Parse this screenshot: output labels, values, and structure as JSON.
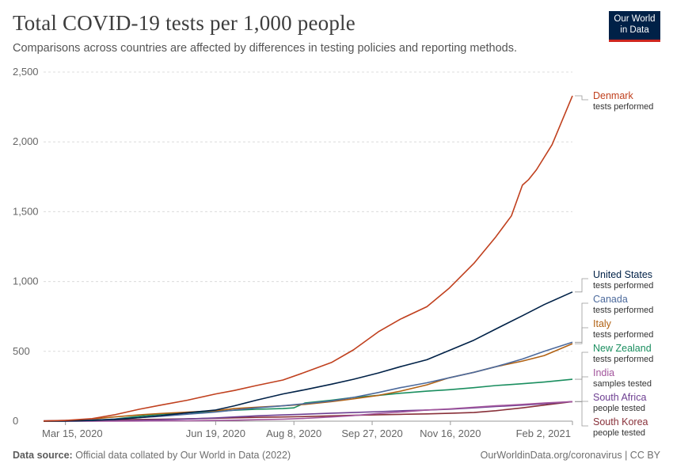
{
  "header": {
    "title": "Total COVID-19 tests per 1,000 people",
    "subtitle": "Comparisons across countries are affected by differences in testing policies and reporting methods.",
    "logo_line1": "Our World",
    "logo_line2": "in Data"
  },
  "footer": {
    "source_label": "Data source:",
    "source_text": "Official data collated by Our World in Data (2022)",
    "credit": "OurWorldinData.org/coronavirus | CC BY"
  },
  "chart_data": {
    "type": "line",
    "title": "Total COVID-19 tests per 1,000 people",
    "subtitle": "Comparisons across countries are affected by differences in testing policies and reporting methods.",
    "xlabel": "",
    "ylabel": "",
    "x_range": [
      "2020-03-01",
      "2021-02-02"
    ],
    "ylim": [
      0,
      2500
    ],
    "y_ticks": [
      0,
      500,
      1000,
      1500,
      2000,
      2500
    ],
    "y_tick_labels": [
      "0",
      "500",
      "1,000",
      "1,500",
      "2,000",
      "2,500"
    ],
    "x_ticks": [
      "2020-03-15",
      "2020-06-19",
      "2020-08-08",
      "2020-09-27",
      "2020-11-16",
      "2021-02-02"
    ],
    "x_tick_labels": [
      "Mar 15, 2020",
      "Jun 19, 2020",
      "Aug 8, 2020",
      "Sep 27, 2020",
      "Nov 16, 2020",
      "Feb 2, 2021"
    ],
    "grid": "horizontal dashed",
    "legend": "labels at right end of lines",
    "series": [
      {
        "name": "Denmark",
        "description": "tests performed",
        "color": "#c0401e",
        "points": [
          [
            "2020-03-01",
            1
          ],
          [
            "2020-03-15",
            5
          ],
          [
            "2020-04-01",
            18
          ],
          [
            "2020-04-15",
            45
          ],
          [
            "2020-05-01",
            85
          ],
          [
            "2020-05-15",
            115
          ],
          [
            "2020-06-01",
            150
          ],
          [
            "2020-06-19",
            195
          ],
          [
            "2020-07-01",
            220
          ],
          [
            "2020-07-15",
            255
          ],
          [
            "2020-08-01",
            295
          ],
          [
            "2020-08-15",
            350
          ],
          [
            "2020-09-01",
            420
          ],
          [
            "2020-09-15",
            510
          ],
          [
            "2020-10-01",
            640
          ],
          [
            "2020-10-15",
            730
          ],
          [
            "2020-11-01",
            820
          ],
          [
            "2020-11-15",
            950
          ],
          [
            "2020-12-01",
            1130
          ],
          [
            "2020-12-15",
            1320
          ],
          [
            "2020-12-25",
            1470
          ],
          [
            "2021-01-01",
            1690
          ],
          [
            "2021-01-05",
            1730
          ],
          [
            "2021-01-10",
            1800
          ],
          [
            "2021-01-20",
            1980
          ],
          [
            "2021-02-02",
            2330
          ]
        ]
      },
      {
        "name": "United States",
        "description": "tests performed",
        "color": "#002147",
        "points": [
          [
            "2020-03-01",
            0
          ],
          [
            "2020-03-15",
            1
          ],
          [
            "2020-04-01",
            5
          ],
          [
            "2020-04-15",
            12
          ],
          [
            "2020-05-01",
            25
          ],
          [
            "2020-05-15",
            40
          ],
          [
            "2020-06-01",
            60
          ],
          [
            "2020-06-19",
            80
          ],
          [
            "2020-07-01",
            110
          ],
          [
            "2020-07-15",
            150
          ],
          [
            "2020-08-01",
            195
          ],
          [
            "2020-08-15",
            225
          ],
          [
            "2020-09-01",
            265
          ],
          [
            "2020-09-15",
            300
          ],
          [
            "2020-10-01",
            345
          ],
          [
            "2020-10-15",
            390
          ],
          [
            "2020-11-01",
            440
          ],
          [
            "2020-11-15",
            505
          ],
          [
            "2020-12-01",
            580
          ],
          [
            "2020-12-15",
            660
          ],
          [
            "2021-01-01",
            755
          ],
          [
            "2021-01-15",
            835
          ],
          [
            "2021-02-02",
            925
          ]
        ]
      },
      {
        "name": "Canada",
        "description": "tests performed",
        "color": "#4c6a9c",
        "points": [
          [
            "2020-03-01",
            0
          ],
          [
            "2020-03-15",
            2
          ],
          [
            "2020-04-01",
            8
          ],
          [
            "2020-04-15",
            15
          ],
          [
            "2020-05-01",
            25
          ],
          [
            "2020-05-15",
            35
          ],
          [
            "2020-06-01",
            50
          ],
          [
            "2020-06-19",
            65
          ],
          [
            "2020-07-01",
            80
          ],
          [
            "2020-07-15",
            95
          ],
          [
            "2020-08-01",
            110
          ],
          [
            "2020-08-15",
            125
          ],
          [
            "2020-09-01",
            145
          ],
          [
            "2020-09-15",
            170
          ],
          [
            "2020-10-01",
            205
          ],
          [
            "2020-10-15",
            240
          ],
          [
            "2020-11-01",
            275
          ],
          [
            "2020-11-15",
            310
          ],
          [
            "2020-12-01",
            350
          ],
          [
            "2020-12-15",
            390
          ],
          [
            "2021-01-01",
            445
          ],
          [
            "2021-01-15",
            500
          ],
          [
            "2021-02-02",
            565
          ]
        ]
      },
      {
        "name": "Italy",
        "description": "tests performed",
        "color": "#b16214",
        "points": [
          [
            "2020-03-01",
            0
          ],
          [
            "2020-03-15",
            3
          ],
          [
            "2020-04-01",
            15
          ],
          [
            "2020-04-15",
            30
          ],
          [
            "2020-05-01",
            45
          ],
          [
            "2020-05-15",
            55
          ],
          [
            "2020-06-01",
            65
          ],
          [
            "2020-06-19",
            75
          ],
          [
            "2020-07-01",
            90
          ],
          [
            "2020-07-15",
            100
          ],
          [
            "2020-08-01",
            110
          ],
          [
            "2020-08-15",
            120
          ],
          [
            "2020-09-01",
            140
          ],
          [
            "2020-09-15",
            160
          ],
          [
            "2020-10-01",
            185
          ],
          [
            "2020-10-15",
            215
          ],
          [
            "2020-11-01",
            260
          ],
          [
            "2020-11-15",
            310
          ],
          [
            "2020-12-01",
            350
          ],
          [
            "2020-12-15",
            390
          ],
          [
            "2021-01-01",
            430
          ],
          [
            "2021-01-15",
            470
          ],
          [
            "2021-02-02",
            555
          ]
        ]
      },
      {
        "name": "New Zealand",
        "description": "tests performed",
        "color": "#1a8e5f",
        "points": [
          [
            "2020-03-01",
            0
          ],
          [
            "2020-03-15",
            1
          ],
          [
            "2020-04-01",
            5
          ],
          [
            "2020-04-15",
            15
          ],
          [
            "2020-05-01",
            35
          ],
          [
            "2020-05-15",
            50
          ],
          [
            "2020-06-01",
            60
          ],
          [
            "2020-06-19",
            70
          ],
          [
            "2020-07-01",
            78
          ],
          [
            "2020-07-15",
            85
          ],
          [
            "2020-08-01",
            90
          ],
          [
            "2020-08-08",
            95
          ],
          [
            "2020-08-15",
            130
          ],
          [
            "2020-09-01",
            150
          ],
          [
            "2020-09-15",
            170
          ],
          [
            "2020-10-01",
            185
          ],
          [
            "2020-10-15",
            200
          ],
          [
            "2020-11-01",
            215
          ],
          [
            "2020-11-15",
            225
          ],
          [
            "2020-12-01",
            240
          ],
          [
            "2020-12-15",
            255
          ],
          [
            "2021-01-01",
            268
          ],
          [
            "2021-01-15",
            280
          ],
          [
            "2021-02-02",
            300
          ]
        ]
      },
      {
        "name": "India",
        "description": "samples tested",
        "color": "#a2559c",
        "points": [
          [
            "2020-03-01",
            0
          ],
          [
            "2020-04-15",
            0
          ],
          [
            "2020-05-01",
            1
          ],
          [
            "2020-05-15",
            2
          ],
          [
            "2020-06-01",
            3
          ],
          [
            "2020-06-19",
            5
          ],
          [
            "2020-07-01",
            7
          ],
          [
            "2020-07-15",
            10
          ],
          [
            "2020-08-01",
            14
          ],
          [
            "2020-08-15",
            20
          ],
          [
            "2020-09-01",
            30
          ],
          [
            "2020-09-15",
            40
          ],
          [
            "2020-10-01",
            55
          ],
          [
            "2020-10-15",
            65
          ],
          [
            "2020-11-01",
            80
          ],
          [
            "2020-11-15",
            88
          ],
          [
            "2020-12-01",
            100
          ],
          [
            "2020-12-15",
            110
          ],
          [
            "2021-01-01",
            120
          ],
          [
            "2021-01-15",
            130
          ],
          [
            "2021-02-02",
            140
          ]
        ]
      },
      {
        "name": "South Africa",
        "description": "people tested",
        "color": "#6d3e91",
        "points": [
          [
            "2020-03-01",
            0
          ],
          [
            "2020-03-15",
            0
          ],
          [
            "2020-04-01",
            1
          ],
          [
            "2020-04-15",
            3
          ],
          [
            "2020-05-01",
            6
          ],
          [
            "2020-05-15",
            10
          ],
          [
            "2020-06-01",
            16
          ],
          [
            "2020-06-19",
            23
          ],
          [
            "2020-07-01",
            30
          ],
          [
            "2020-07-15",
            38
          ],
          [
            "2020-08-01",
            45
          ],
          [
            "2020-08-15",
            50
          ],
          [
            "2020-09-01",
            57
          ],
          [
            "2020-09-15",
            62
          ],
          [
            "2020-10-01",
            68
          ],
          [
            "2020-10-15",
            74
          ],
          [
            "2020-11-01",
            80
          ],
          [
            "2020-11-15",
            85
          ],
          [
            "2020-12-01",
            95
          ],
          [
            "2020-12-15",
            105
          ],
          [
            "2021-01-01",
            115
          ],
          [
            "2021-01-15",
            125
          ],
          [
            "2021-02-02",
            140
          ]
        ]
      },
      {
        "name": "South Korea",
        "description": "people tested",
        "color": "#883039",
        "points": [
          [
            "2020-03-01",
            2
          ],
          [
            "2020-03-15",
            5
          ],
          [
            "2020-04-01",
            8
          ],
          [
            "2020-04-15",
            10
          ],
          [
            "2020-05-01",
            12
          ],
          [
            "2020-05-15",
            14
          ],
          [
            "2020-06-01",
            17
          ],
          [
            "2020-06-19",
            21
          ],
          [
            "2020-07-01",
            24
          ],
          [
            "2020-07-15",
            27
          ],
          [
            "2020-08-01",
            30
          ],
          [
            "2020-08-15",
            33
          ],
          [
            "2020-09-01",
            38
          ],
          [
            "2020-09-15",
            42
          ],
          [
            "2020-10-01",
            46
          ],
          [
            "2020-10-15",
            49
          ],
          [
            "2020-11-01",
            52
          ],
          [
            "2020-11-15",
            56
          ],
          [
            "2020-12-01",
            62
          ],
          [
            "2020-12-15",
            75
          ],
          [
            "2021-01-01",
            95
          ],
          [
            "2021-01-15",
            115
          ],
          [
            "2021-02-02",
            140
          ]
        ]
      }
    ]
  }
}
